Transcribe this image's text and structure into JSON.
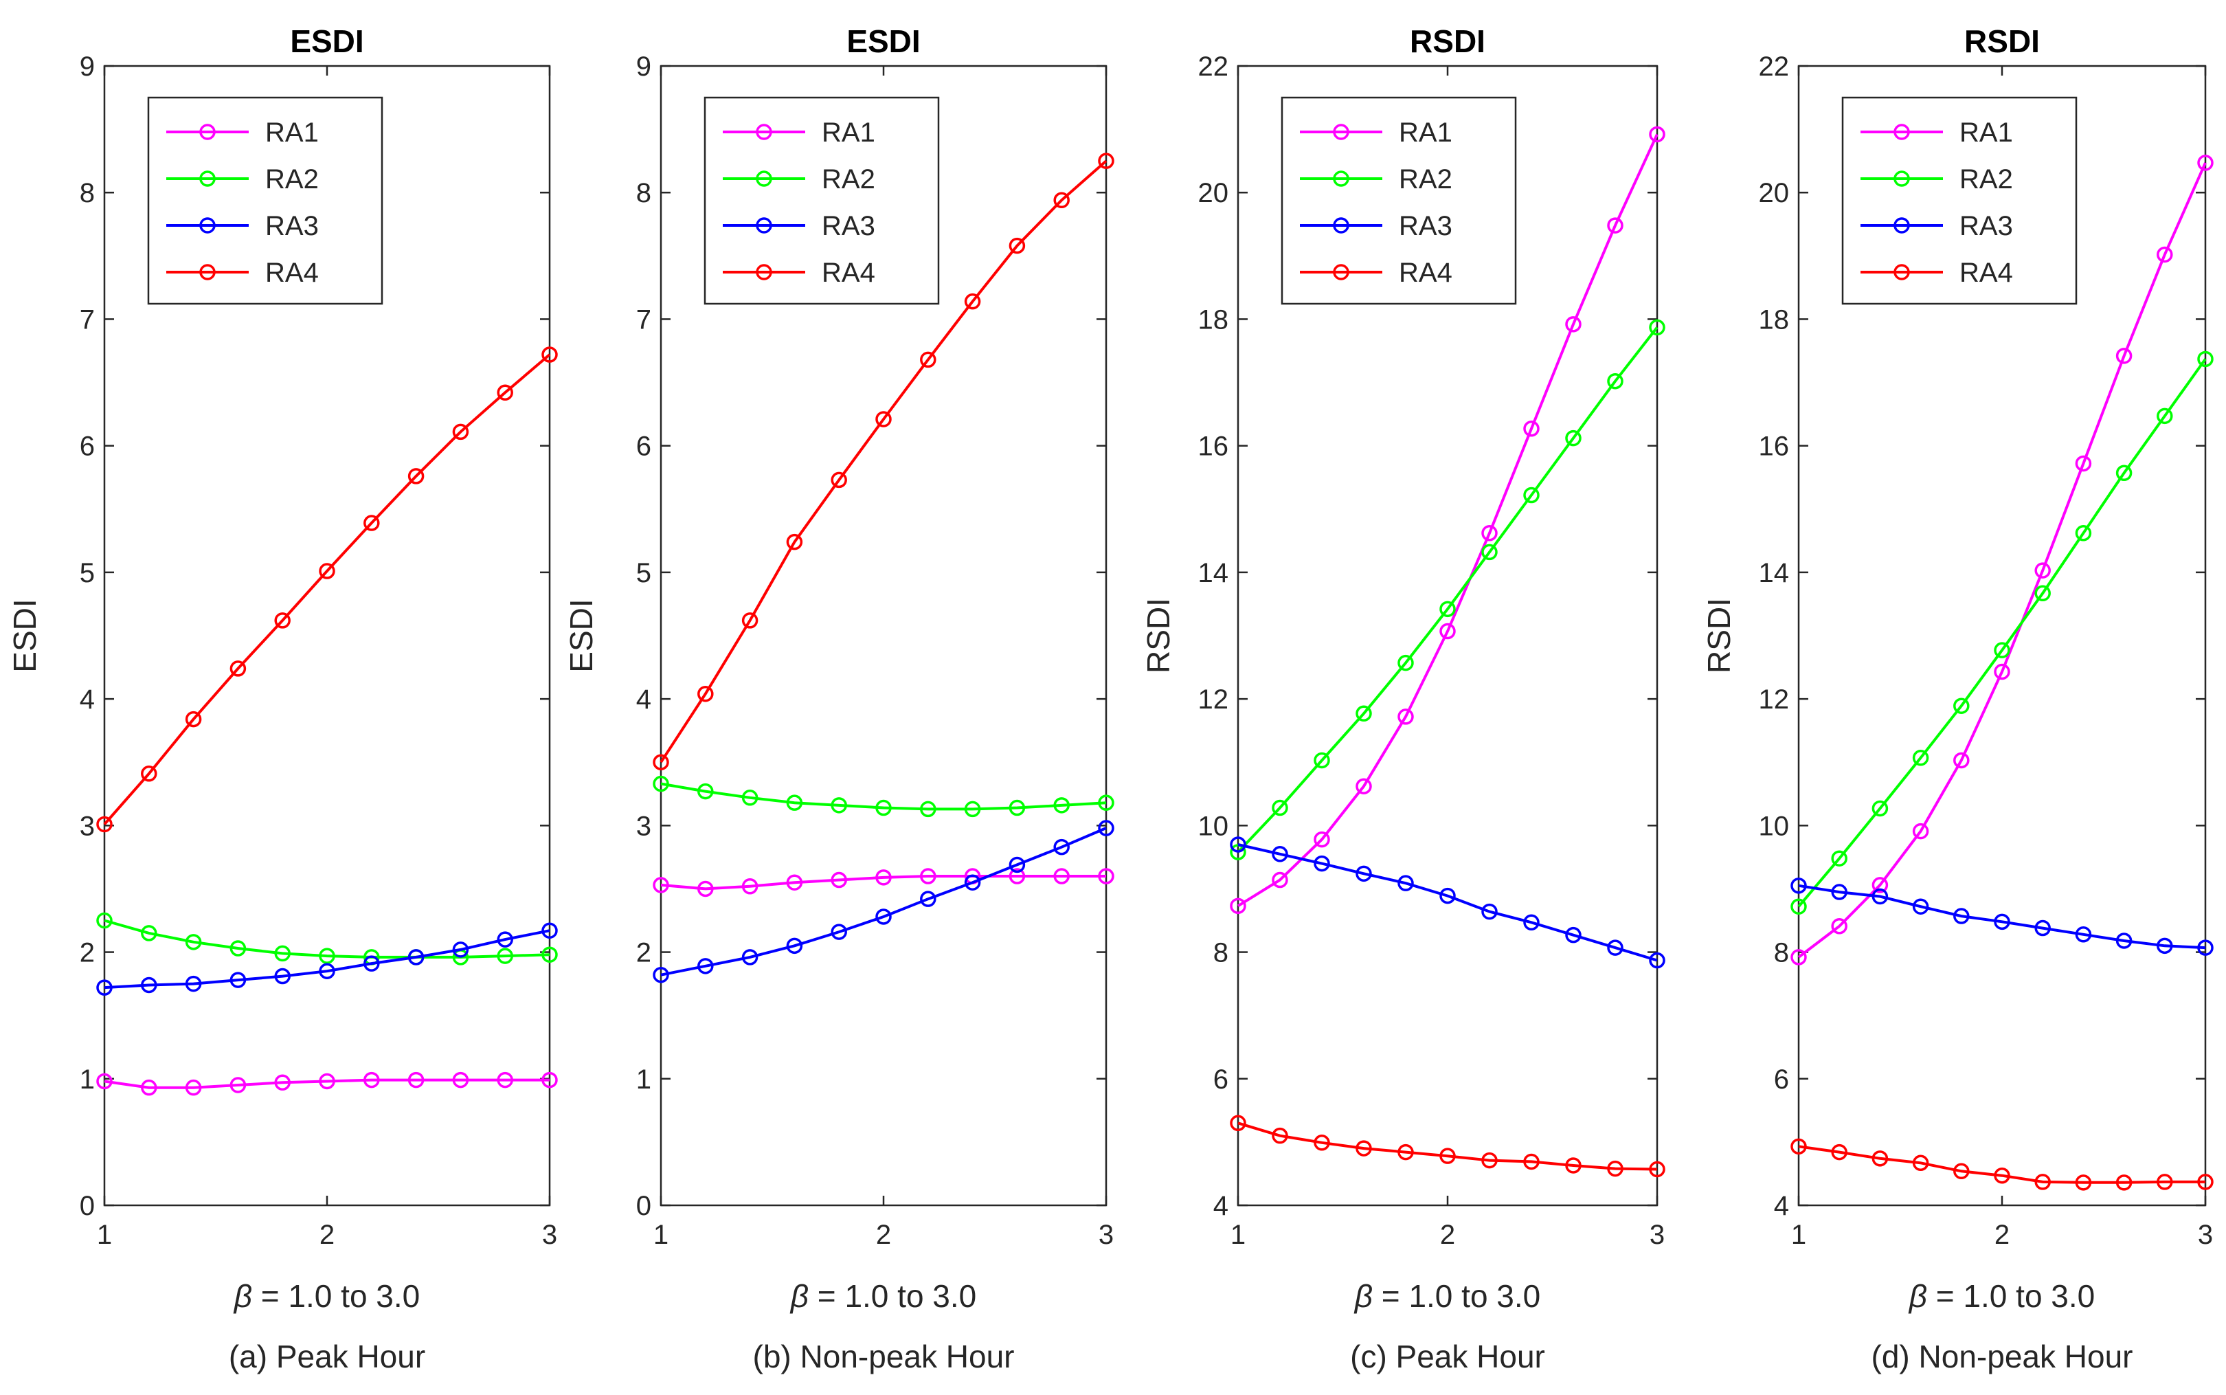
{
  "colors": {
    "RA1": "#ff00ff",
    "RA2": "#00ff00",
    "RA3": "#0000ff",
    "RA4": "#ff0000"
  },
  "chart_data": [
    {
      "type": "line",
      "title": "ESDI",
      "ylabel": "ESDI",
      "xlabel_symbol": "β",
      "xlabel_rest": " = 1.0 to 3.0",
      "caption": "(a) Peak Hour",
      "xlim": [
        1,
        3
      ],
      "ylim": [
        0,
        9
      ],
      "xticks": [
        1,
        2,
        3
      ],
      "yticks": [
        0,
        1,
        2,
        3,
        4,
        5,
        6,
        7,
        8,
        9
      ],
      "legend_position": "top-left",
      "x": [
        1.0,
        1.2,
        1.4,
        1.6,
        1.8,
        2.0,
        2.2,
        2.4,
        2.6,
        2.8,
        3.0
      ],
      "series": [
        {
          "name": "RA1",
          "values": [
            0.98,
            0.93,
            0.93,
            0.95,
            0.97,
            0.98,
            0.99,
            0.99,
            0.99,
            0.99,
            0.99
          ]
        },
        {
          "name": "RA2",
          "values": [
            2.25,
            2.15,
            2.08,
            2.03,
            1.99,
            1.97,
            1.96,
            1.96,
            1.96,
            1.97,
            1.98
          ]
        },
        {
          "name": "RA3",
          "values": [
            1.72,
            1.74,
            1.75,
            1.78,
            1.81,
            1.85,
            1.91,
            1.96,
            2.02,
            2.1,
            2.17
          ]
        },
        {
          "name": "RA4",
          "values": [
            3.01,
            3.41,
            3.84,
            4.24,
            4.62,
            5.01,
            5.39,
            5.76,
            6.11,
            6.42,
            6.72
          ]
        }
      ]
    },
    {
      "type": "line",
      "title": "ESDI",
      "ylabel": "ESDI",
      "xlabel_symbol": "β",
      "xlabel_rest": " = 1.0 to 3.0",
      "caption": "(b) Non-peak Hour",
      "xlim": [
        1,
        3
      ],
      "ylim": [
        0,
        9
      ],
      "xticks": [
        1,
        2,
        3
      ],
      "yticks": [
        0,
        1,
        2,
        3,
        4,
        5,
        6,
        7,
        8,
        9
      ],
      "legend_position": "top-left",
      "x": [
        1.0,
        1.2,
        1.4,
        1.6,
        1.8,
        2.0,
        2.2,
        2.4,
        2.6,
        2.8,
        3.0
      ],
      "series": [
        {
          "name": "RA1",
          "values": [
            2.53,
            2.5,
            2.52,
            2.55,
            2.57,
            2.59,
            2.6,
            2.6,
            2.6,
            2.6,
            2.6
          ]
        },
        {
          "name": "RA2",
          "values": [
            3.33,
            3.27,
            3.22,
            3.18,
            3.16,
            3.14,
            3.13,
            3.13,
            3.14,
            3.16,
            3.18
          ]
        },
        {
          "name": "RA3",
          "values": [
            1.82,
            1.89,
            1.96,
            2.05,
            2.16,
            2.28,
            2.42,
            2.55,
            2.69,
            2.83,
            2.98
          ]
        },
        {
          "name": "RA4",
          "values": [
            3.5,
            4.04,
            4.62,
            5.24,
            5.73,
            6.21,
            6.68,
            7.14,
            7.58,
            7.94,
            8.25
          ]
        }
      ]
    },
    {
      "type": "line",
      "title": "RSDI",
      "ylabel": "RSDI",
      "xlabel_symbol": "β",
      "xlabel_rest": " = 1.0 to 3.0",
      "caption": "(c) Peak Hour",
      "xlim": [
        1,
        3
      ],
      "ylim": [
        4,
        22
      ],
      "xticks": [
        1,
        2,
        3
      ],
      "yticks": [
        4,
        6,
        8,
        10,
        12,
        14,
        16,
        18,
        20,
        22
      ],
      "legend_position": "top-left",
      "x": [
        1.0,
        1.2,
        1.4,
        1.6,
        1.8,
        2.0,
        2.2,
        2.4,
        2.6,
        2.8,
        3.0
      ],
      "series": [
        {
          "name": "RA1",
          "values": [
            8.73,
            9.14,
            9.78,
            10.62,
            11.72,
            13.07,
            14.62,
            16.27,
            17.92,
            19.48,
            20.92
          ]
        },
        {
          "name": "RA2",
          "values": [
            9.58,
            10.28,
            11.03,
            11.77,
            12.57,
            13.42,
            14.32,
            15.22,
            16.12,
            17.02,
            17.87
          ]
        },
        {
          "name": "RA3",
          "values": [
            9.7,
            9.55,
            9.4,
            9.24,
            9.09,
            8.89,
            8.64,
            8.47,
            8.27,
            8.07,
            7.87
          ]
        },
        {
          "name": "RA4",
          "values": [
            5.3,
            5.1,
            4.99,
            4.9,
            4.84,
            4.78,
            4.71,
            4.69,
            4.63,
            4.58,
            4.57
          ]
        }
      ]
    },
    {
      "type": "line",
      "title": "RSDI",
      "ylabel": "RSDI",
      "xlabel_symbol": "β",
      "xlabel_rest": " = 1.0 to 3.0",
      "caption": "(d) Non-peak Hour",
      "xlim": [
        1,
        3
      ],
      "ylim": [
        4,
        22
      ],
      "xticks": [
        1,
        2,
        3
      ],
      "yticks": [
        4,
        6,
        8,
        10,
        12,
        14,
        16,
        18,
        20,
        22
      ],
      "legend_position": "top-left",
      "x": [
        1.0,
        1.2,
        1.4,
        1.6,
        1.8,
        2.0,
        2.2,
        2.4,
        2.6,
        2.8,
        3.0
      ],
      "series": [
        {
          "name": "RA1",
          "values": [
            7.92,
            8.41,
            9.06,
            9.91,
            11.03,
            12.43,
            14.03,
            15.72,
            17.42,
            19.02,
            20.47
          ]
        },
        {
          "name": "RA2",
          "values": [
            8.72,
            9.48,
            10.27,
            11.07,
            11.89,
            12.77,
            13.67,
            14.62,
            15.57,
            16.47,
            17.37
          ]
        },
        {
          "name": "RA3",
          "values": [
            9.05,
            8.95,
            8.88,
            8.72,
            8.57,
            8.48,
            8.38,
            8.28,
            8.18,
            8.1,
            8.07
          ]
        },
        {
          "name": "RA4",
          "values": [
            4.93,
            4.84,
            4.74,
            4.67,
            4.54,
            4.47,
            4.37,
            4.36,
            4.36,
            4.37,
            4.37
          ]
        }
      ]
    }
  ]
}
